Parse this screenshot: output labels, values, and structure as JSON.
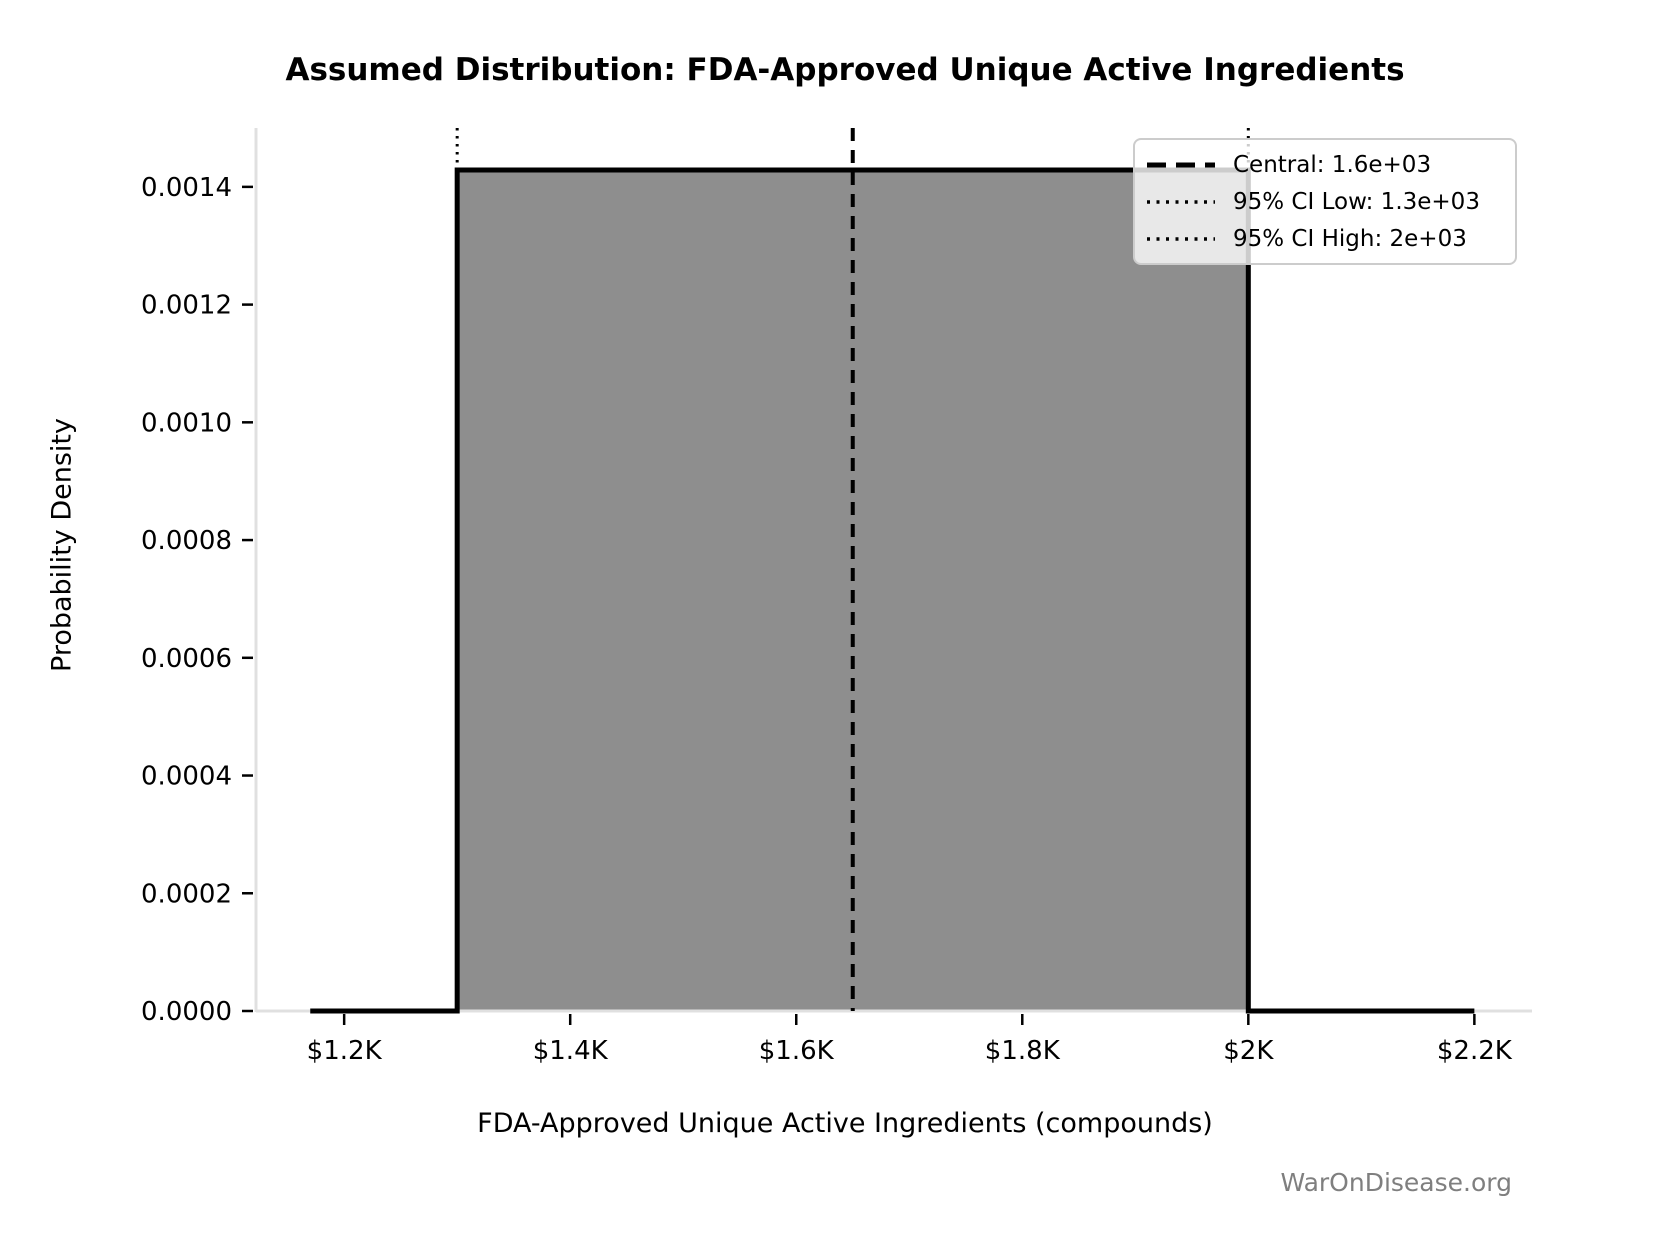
{
  "watermark": "WarOnDisease.org",
  "chart_data": {
    "type": "area",
    "subtype": "uniform-distribution-pdf",
    "title": "Assumed Distribution: FDA-Approved Unique Active Ingredients",
    "xlabel": "FDA-Approved Unique Active Ingredients (compounds)",
    "ylabel": "Probability Density",
    "xlim": [
      1122,
      2251
    ],
    "ylim": [
      0,
      0.0015
    ],
    "grid": false,
    "x_ticks": [
      {
        "value": 1200,
        "label": "$1.2K"
      },
      {
        "value": 1400,
        "label": "$1.4K"
      },
      {
        "value": 1600,
        "label": "$1.6K"
      },
      {
        "value": 1800,
        "label": "$1.8K"
      },
      {
        "value": 2000,
        "label": "$2K"
      },
      {
        "value": 2200,
        "label": "$2.2K"
      }
    ],
    "y_ticks": [
      {
        "value": 0.0,
        "label": "0.0000"
      },
      {
        "value": 0.0002,
        "label": "0.0002"
      },
      {
        "value": 0.0004,
        "label": "0.0004"
      },
      {
        "value": 0.0006,
        "label": "0.0006"
      },
      {
        "value": 0.0008,
        "label": "0.0008"
      },
      {
        "value": 0.001,
        "label": "0.0010"
      },
      {
        "value": 0.0012,
        "label": "0.0012"
      },
      {
        "value": 0.0014,
        "label": "0.0014"
      }
    ],
    "distribution": {
      "low": 1300,
      "high": 2000,
      "central": 1650,
      "density": 0.00142857,
      "pdf_x_start": 1170,
      "pdf_x_end": 2200
    },
    "legend": {
      "position": "upper right",
      "entries": [
        {
          "label": "Central: 1.6e+03",
          "style": "dashed"
        },
        {
          "label": "95% CI Low: 1.3e+03",
          "style": "dotted"
        },
        {
          "label": "95% CI High: 2e+03",
          "style": "dotted"
        }
      ]
    },
    "colors": {
      "fill": "#8e8e8e",
      "line": "#000000",
      "spine": "#e0e0e0",
      "tick": "#000000",
      "legend_border": "#cccccc",
      "watermark": "#7f7f7f"
    }
  }
}
